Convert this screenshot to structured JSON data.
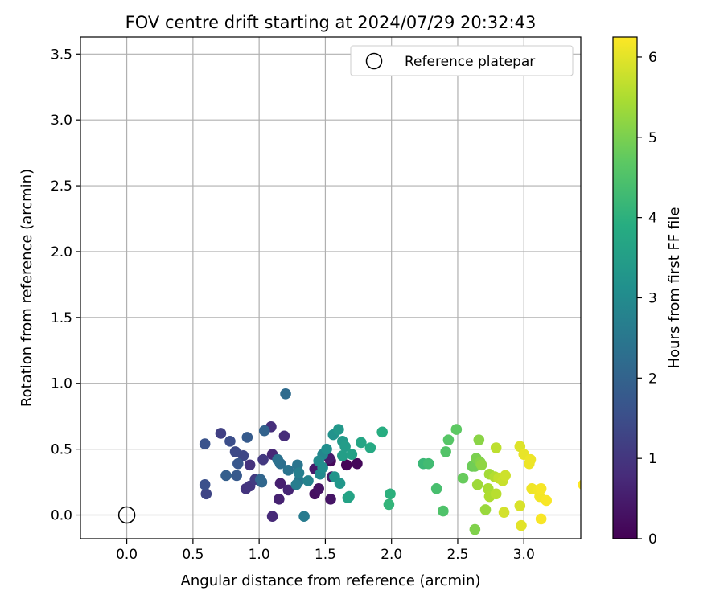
{
  "chart_data": {
    "type": "scatter",
    "title": "FOV centre drift starting at 2024/07/29 20:32:43",
    "xlabel": "Angular distance from reference (arcmin)",
    "ylabel": "Rotation from reference (arcmin)",
    "xlim": [
      -0.35,
      3.43
    ],
    "ylim": [
      -0.18,
      3.63
    ],
    "xticks": [
      "0.0",
      "0.5",
      "1.0",
      "1.5",
      "2.0",
      "2.5",
      "3.0"
    ],
    "xtick_values": [
      0.0,
      0.5,
      1.0,
      1.5,
      2.0,
      2.5,
      3.0
    ],
    "yticks": [
      "0.0",
      "0.5",
      "1.0",
      "1.5",
      "2.0",
      "2.5",
      "3.0",
      "3.5"
    ],
    "ytick_values": [
      0.0,
      0.5,
      1.0,
      1.5,
      2.0,
      2.5,
      3.0,
      3.5
    ],
    "grid": true,
    "legend": {
      "placement": "top-right",
      "entries": [
        "Reference platepar"
      ]
    },
    "reference_point": {
      "x": 0.0,
      "y": 0.0
    },
    "colorbar": {
      "label": "Hours from first FF file",
      "range": [
        0,
        6.25
      ],
      "ticks": [
        "0",
        "1",
        "2",
        "3",
        "4",
        "5",
        "6"
      ],
      "tick_values": [
        0,
        1,
        2,
        3,
        4,
        5,
        6
      ],
      "colormap": "viridis"
    },
    "points": [
      {
        "x": 1.66,
        "y": 0.38,
        "h": 0.05
      },
      {
        "x": 1.74,
        "y": 0.39,
        "h": 0.1
      },
      {
        "x": 1.54,
        "y": 0.41,
        "h": 0.15
      },
      {
        "x": 1.42,
        "y": 0.16,
        "h": 0.25
      },
      {
        "x": 1.45,
        "y": 0.2,
        "h": 0.3
      },
      {
        "x": 1.54,
        "y": 0.12,
        "h": 0.35
      },
      {
        "x": 1.55,
        "y": 0.29,
        "h": 0.4
      },
      {
        "x": 1.42,
        "y": 0.35,
        "h": 0.45
      },
      {
        "x": 1.53,
        "y": 0.43,
        "h": 0.5
      },
      {
        "x": 1.16,
        "y": 0.24,
        "h": 0.55
      },
      {
        "x": 1.15,
        "y": 0.12,
        "h": 0.6
      },
      {
        "x": 1.22,
        "y": 0.19,
        "h": 0.65
      },
      {
        "x": 1.1,
        "y": 0.46,
        "h": 0.7
      },
      {
        "x": 1.1,
        "y": -0.01,
        "h": 0.75
      },
      {
        "x": 1.19,
        "y": 0.6,
        "h": 0.8
      },
      {
        "x": 1.09,
        "y": 0.67,
        "h": 0.85
      },
      {
        "x": 0.93,
        "y": 0.38,
        "h": 0.9
      },
      {
        "x": 0.9,
        "y": 0.2,
        "h": 0.95
      },
      {
        "x": 0.93,
        "y": 0.22,
        "h": 1.0
      },
      {
        "x": 1.03,
        "y": 0.42,
        "h": 1.05
      },
      {
        "x": 0.97,
        "y": 0.27,
        "h": 1.1
      },
      {
        "x": 0.71,
        "y": 0.62,
        "h": 1.2
      },
      {
        "x": 0.6,
        "y": 0.16,
        "h": 1.3
      },
      {
        "x": 0.88,
        "y": 0.45,
        "h": 1.35
      },
      {
        "x": 0.82,
        "y": 0.48,
        "h": 1.4
      },
      {
        "x": 0.78,
        "y": 0.56,
        "h": 1.5
      },
      {
        "x": 0.59,
        "y": 0.23,
        "h": 1.55
      },
      {
        "x": 0.59,
        "y": 0.54,
        "h": 1.6
      },
      {
        "x": 0.84,
        "y": 0.39,
        "h": 1.7
      },
      {
        "x": 0.83,
        "y": 0.3,
        "h": 1.75
      },
      {
        "x": 0.91,
        "y": 0.59,
        "h": 1.8
      },
      {
        "x": 0.75,
        "y": 0.3,
        "h": 1.9
      },
      {
        "x": 1.04,
        "y": 0.64,
        "h": 2.0
      },
      {
        "x": 1.01,
        "y": 0.27,
        "h": 2.05
      },
      {
        "x": 1.02,
        "y": 0.25,
        "h": 2.1
      },
      {
        "x": 1.2,
        "y": 0.92,
        "h": 2.2
      },
      {
        "x": 1.16,
        "y": 0.39,
        "h": 2.3
      },
      {
        "x": 1.14,
        "y": 0.42,
        "h": 2.35
      },
      {
        "x": 1.22,
        "y": 0.34,
        "h": 2.4
      },
      {
        "x": 1.29,
        "y": 0.38,
        "h": 2.45
      },
      {
        "x": 1.3,
        "y": 0.26,
        "h": 2.5
      },
      {
        "x": 1.34,
        "y": -0.01,
        "h": 2.6
      },
      {
        "x": 1.28,
        "y": 0.23,
        "h": 2.65
      },
      {
        "x": 1.3,
        "y": 0.32,
        "h": 2.7
      },
      {
        "x": 1.37,
        "y": 0.26,
        "h": 2.8
      },
      {
        "x": 1.48,
        "y": 0.46,
        "h": 2.9
      },
      {
        "x": 1.46,
        "y": 0.31,
        "h": 2.95
      },
      {
        "x": 1.45,
        "y": 0.41,
        "h": 3.0
      },
      {
        "x": 1.48,
        "y": 0.36,
        "h": 3.05
      },
      {
        "x": 1.51,
        "y": 0.5,
        "h": 3.1
      },
      {
        "x": 1.56,
        "y": 0.61,
        "h": 3.2
      },
      {
        "x": 1.57,
        "y": 0.29,
        "h": 3.25
      },
      {
        "x": 1.61,
        "y": 0.24,
        "h": 3.3
      },
      {
        "x": 1.6,
        "y": 0.65,
        "h": 3.35
      },
      {
        "x": 1.63,
        "y": 0.56,
        "h": 3.4
      },
      {
        "x": 1.65,
        "y": 0.52,
        "h": 3.45
      },
      {
        "x": 1.63,
        "y": 0.45,
        "h": 3.5
      },
      {
        "x": 1.7,
        "y": 0.46,
        "h": 3.55
      },
      {
        "x": 1.67,
        "y": 0.13,
        "h": 3.6
      },
      {
        "x": 1.68,
        "y": 0.14,
        "h": 3.65
      },
      {
        "x": 1.77,
        "y": 0.55,
        "h": 3.7
      },
      {
        "x": 1.84,
        "y": 0.51,
        "h": 3.8
      },
      {
        "x": 1.93,
        "y": 0.63,
        "h": 3.9
      },
      {
        "x": 1.99,
        "y": 0.16,
        "h": 4.0
      },
      {
        "x": 1.98,
        "y": 0.08,
        "h": 4.1
      },
      {
        "x": 2.24,
        "y": 0.39,
        "h": 4.2
      },
      {
        "x": 2.28,
        "y": 0.39,
        "h": 4.3
      },
      {
        "x": 2.34,
        "y": 0.2,
        "h": 4.4
      },
      {
        "x": 2.39,
        "y": 0.03,
        "h": 4.5
      },
      {
        "x": 2.41,
        "y": 0.48,
        "h": 4.55
      },
      {
        "x": 2.43,
        "y": 0.57,
        "h": 4.6
      },
      {
        "x": 2.49,
        "y": 0.65,
        "h": 4.7
      },
      {
        "x": 2.54,
        "y": 0.28,
        "h": 4.8
      },
      {
        "x": 2.61,
        "y": 0.37,
        "h": 4.85
      },
      {
        "x": 2.63,
        "y": 0.37,
        "h": 4.9
      },
      {
        "x": 2.64,
        "y": 0.43,
        "h": 5.0
      },
      {
        "x": 2.63,
        "y": -0.11,
        "h": 5.05
      },
      {
        "x": 2.67,
        "y": 0.4,
        "h": 5.1
      },
      {
        "x": 2.66,
        "y": 0.57,
        "h": 5.15
      },
      {
        "x": 2.68,
        "y": 0.38,
        "h": 5.2
      },
      {
        "x": 2.71,
        "y": 0.04,
        "h": 5.3
      },
      {
        "x": 2.65,
        "y": 0.23,
        "h": 5.35
      },
      {
        "x": 2.74,
        "y": 0.31,
        "h": 5.4
      },
      {
        "x": 2.73,
        "y": 0.2,
        "h": 5.45
      },
      {
        "x": 2.74,
        "y": 0.14,
        "h": 5.5
      },
      {
        "x": 2.78,
        "y": 0.29,
        "h": 5.55
      },
      {
        "x": 2.79,
        "y": 0.16,
        "h": 5.6
      },
      {
        "x": 2.79,
        "y": 0.51,
        "h": 5.65
      },
      {
        "x": 2.81,
        "y": 0.28,
        "h": 5.7
      },
      {
        "x": 2.84,
        "y": 0.26,
        "h": 5.75
      },
      {
        "x": 2.86,
        "y": 0.3,
        "h": 5.8
      },
      {
        "x": 2.85,
        "y": 0.02,
        "h": 5.85
      },
      {
        "x": 2.97,
        "y": 0.07,
        "h": 5.9
      },
      {
        "x": 2.97,
        "y": 0.52,
        "h": 5.95
      },
      {
        "x": 2.98,
        "y": -0.08,
        "h": 6.0
      },
      {
        "x": 3.0,
        "y": 0.46,
        "h": 6.05
      },
      {
        "x": 3.04,
        "y": 0.39,
        "h": 6.1
      },
      {
        "x": 3.05,
        "y": 0.42,
        "h": 6.1
      },
      {
        "x": 3.06,
        "y": 0.2,
        "h": 6.12
      },
      {
        "x": 3.11,
        "y": 0.19,
        "h": 6.15
      },
      {
        "x": 3.12,
        "y": 0.14,
        "h": 6.15
      },
      {
        "x": 3.13,
        "y": 0.2,
        "h": 6.18
      },
      {
        "x": 3.13,
        "y": -0.03,
        "h": 6.2
      },
      {
        "x": 3.17,
        "y": 0.11,
        "h": 6.2
      },
      {
        "x": 3.45,
        "y": 0.23,
        "h": 6.25
      }
    ]
  }
}
